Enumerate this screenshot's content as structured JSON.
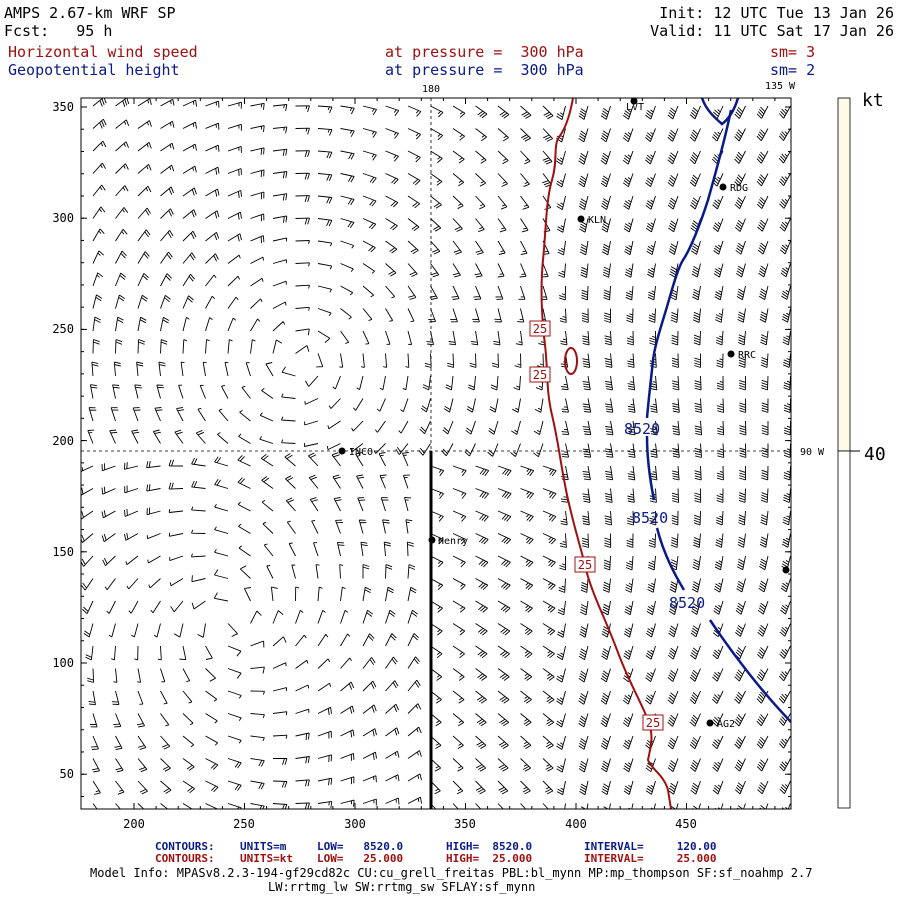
{
  "header": {
    "model": "AMPS 2.67-km WRF SP",
    "forecast": "Fcst:   95 h",
    "init": "Init: 12 UTC Tue 13 Jan 26",
    "valid": "Valid: 11 UTC Sat 17 Jan 26",
    "field1": "Horizontal wind speed",
    "field1_level": "at pressure =  300 hPa",
    "field1_sm": "sm= 3",
    "field2": "Geopotential height",
    "field2_level": "at pressure =  300 hPa",
    "field2_sm": "sm= 2"
  },
  "map": {
    "x_ticks": [
      "200",
      "250",
      "300",
      "350",
      "400",
      "450"
    ],
    "y_ticks": [
      "350",
      "300",
      "250",
      "200",
      "150",
      "100",
      "50"
    ],
    "meridian_labels": [
      "180",
      "135 W",
      "90 W"
    ],
    "stations": [
      "LVT",
      "RDG",
      "KLN",
      "RRC",
      "INCO",
      "Henry",
      "AG2"
    ],
    "contour_labels": {
      "height": [
        "8520",
        "8520",
        "8520"
      ],
      "speed": [
        "25",
        "25",
        "25",
        "25"
      ]
    },
    "colorbar": {
      "unit": "kt",
      "value_label": "40",
      "fill": "#fdfbe8"
    },
    "colors": {
      "height_contour": "#0a1a8a",
      "speed_contour": "#a01010"
    }
  },
  "footer": {
    "row1": {
      "label": "CONTOURS:",
      "units": "UNITS=m",
      "low": "LOW=   8520.0",
      "high": "HIGH=  8520.0",
      "interval": "INTERVAL=     120.00"
    },
    "row2": {
      "label": "CONTOURS:",
      "units": "UNITS=kt",
      "low": "LOW=   25.000",
      "high": "HIGH=  25.000",
      "interval": "INTERVAL=     25.000"
    },
    "model_info": "Model Info: MPASv8.2.3-194-gf29cd82c CU:cu_grell_freitas PBL:bl_mynn MP:mp_thompson SF:sf_noahmp 2.7",
    "model_info2": "LW:rrtmg_lw SW:rrtmg_sw SFLAY:sf_mynn"
  }
}
